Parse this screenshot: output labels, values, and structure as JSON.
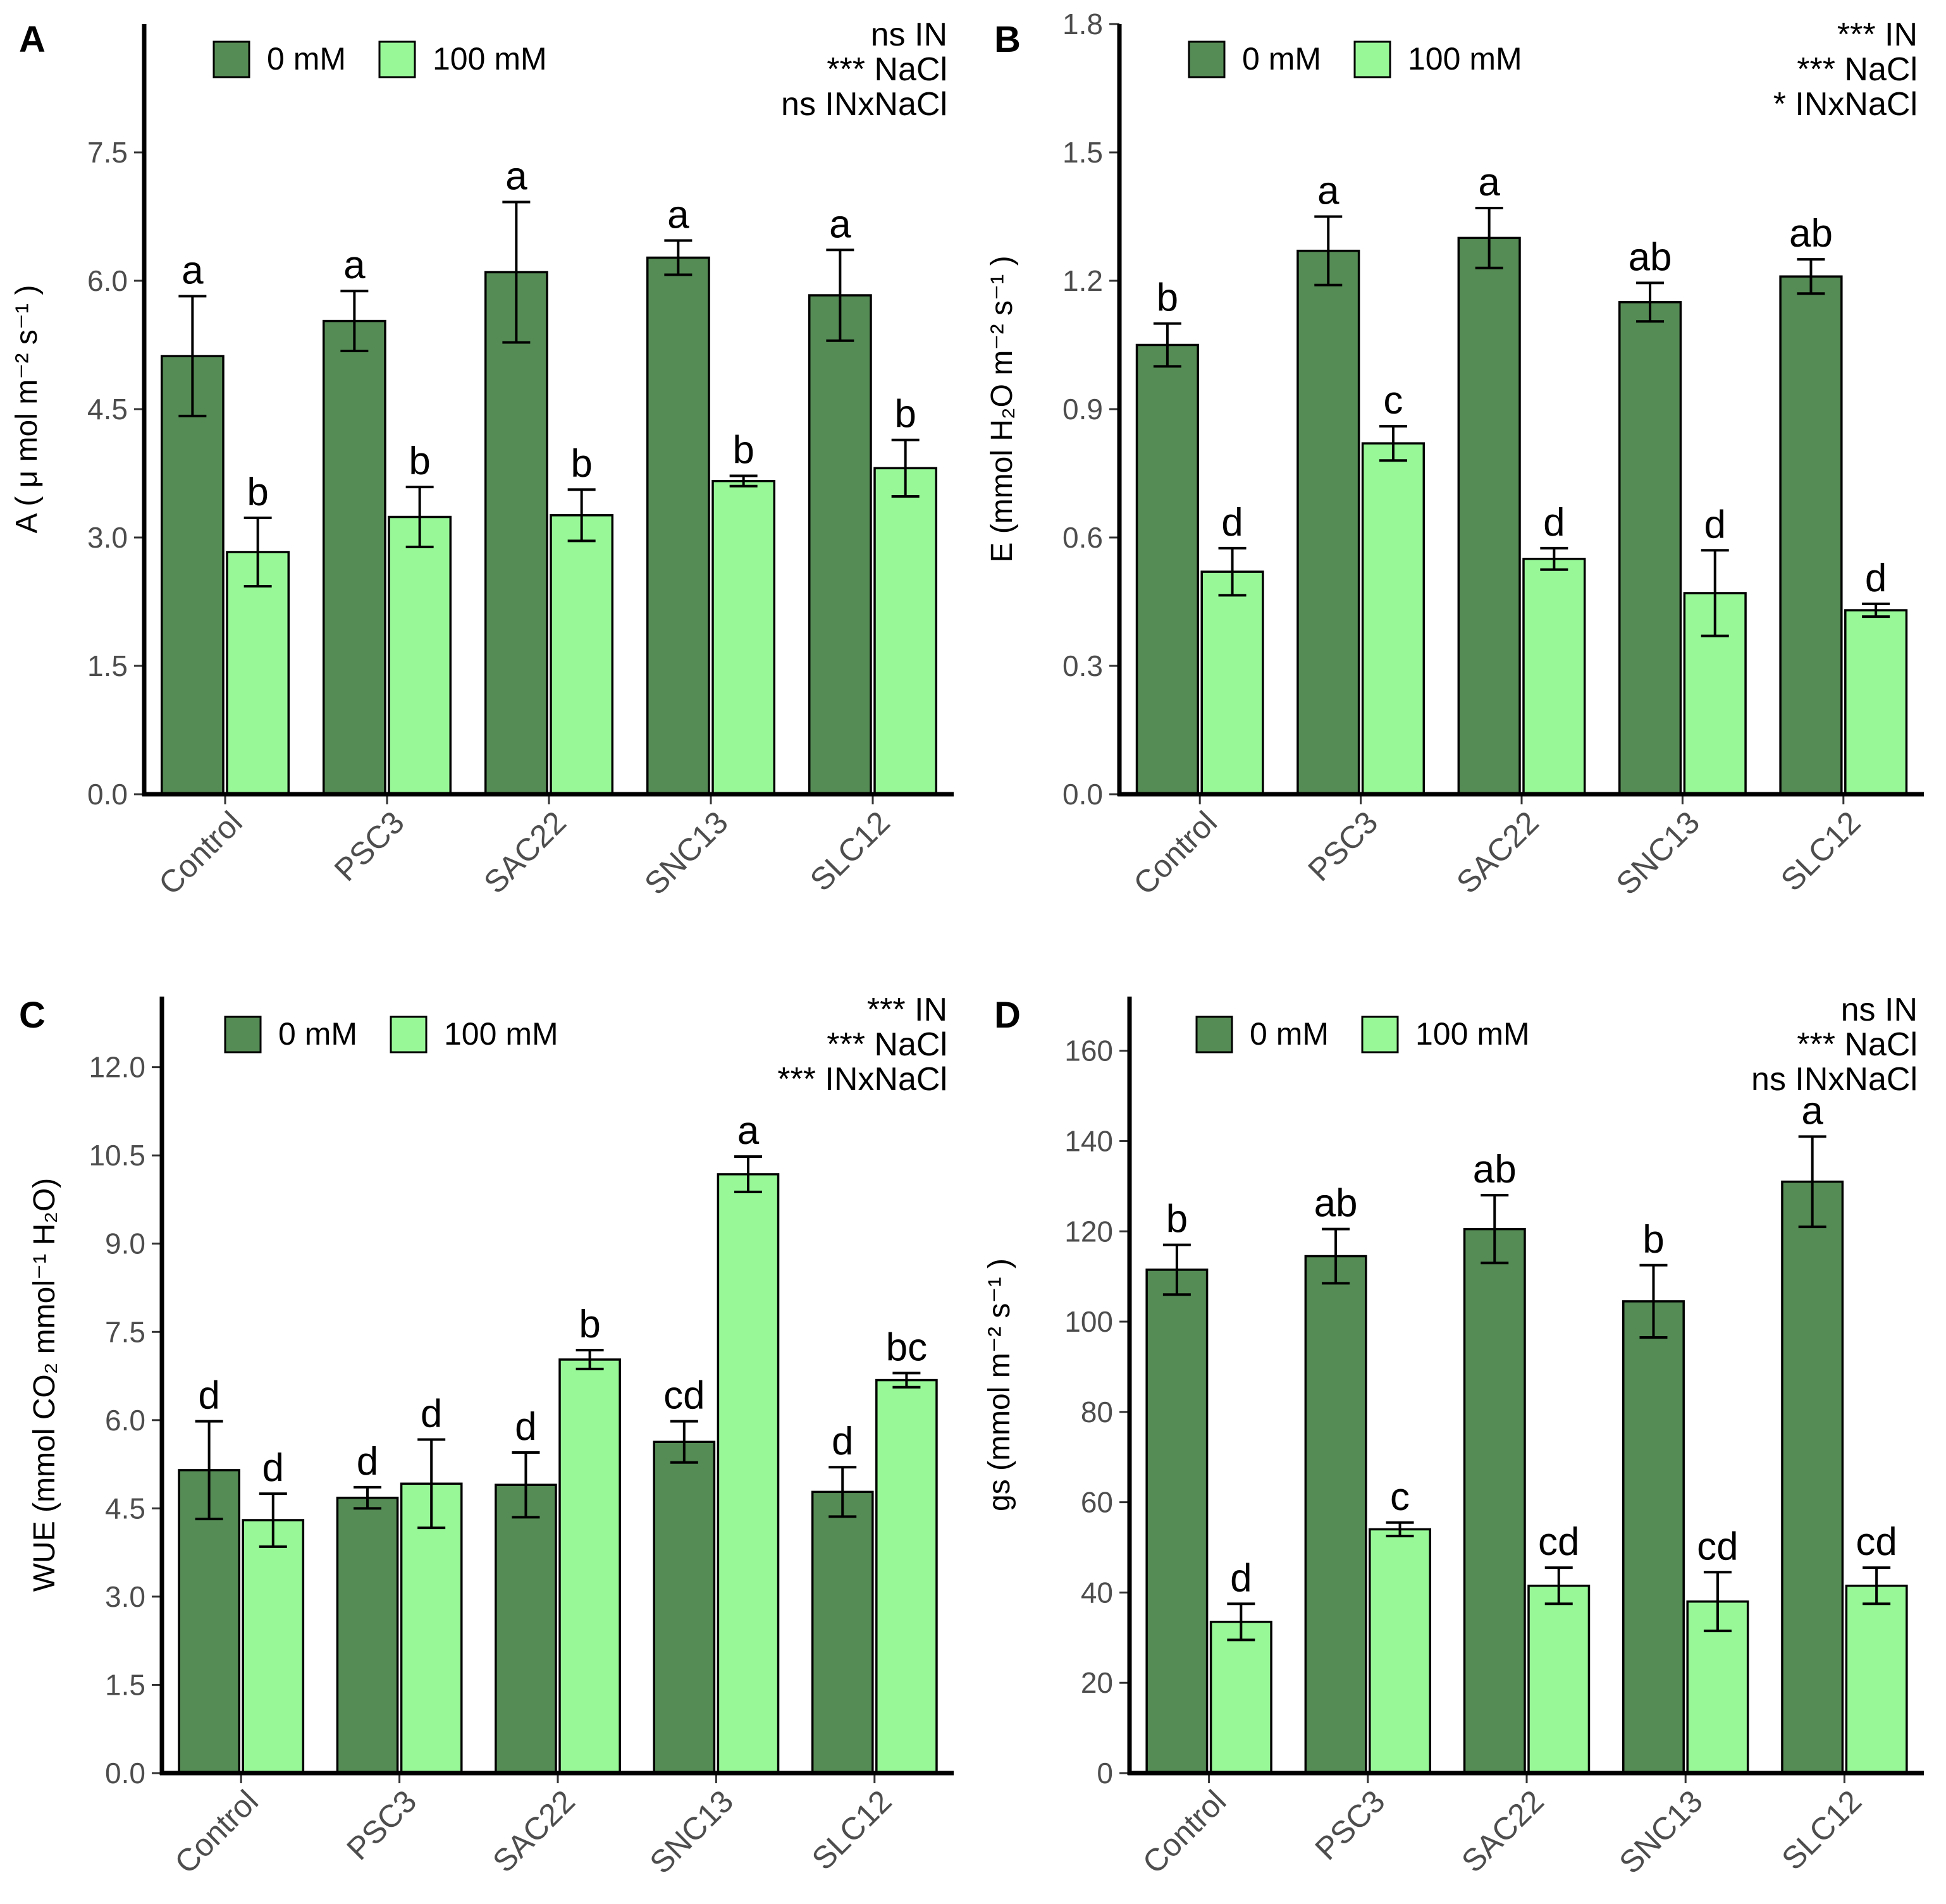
{
  "colors": {
    "dark": "#558b55",
    "light": "#98f898",
    "ink": "#000000",
    "tick": "#4d4d4d"
  },
  "legend": {
    "items": [
      "0 mM",
      "100 mM"
    ]
  },
  "chart_data": [
    {
      "panel_label": "A",
      "type": "bar",
      "ylabel": "A ( μ mol m⁻² s⁻¹ )",
      "ylim": [
        0,
        9
      ],
      "yticks": [
        "0.0",
        "1.5",
        "3.0",
        "4.5",
        "6.0",
        "7.5"
      ],
      "ytick_values": [
        0,
        1.5,
        3,
        4.5,
        6,
        7.5
      ],
      "categories": [
        "Control",
        "PSC3",
        "SAC22",
        "SNC13",
        "SLC12"
      ],
      "series": [
        {
          "name": "0 mM",
          "values": [
            5.12,
            5.53,
            6.1,
            6.27,
            5.83
          ],
          "errors": [
            0.7,
            0.35,
            0.82,
            0.2,
            0.53
          ],
          "letters": [
            "a",
            "a",
            "a",
            "a",
            "a"
          ]
        },
        {
          "name": "100 mM",
          "values": [
            2.83,
            3.24,
            3.26,
            3.66,
            3.81
          ],
          "errors": [
            0.4,
            0.35,
            0.3,
            0.06,
            0.33
          ],
          "letters": [
            "b",
            "b",
            "b",
            "b",
            "b"
          ]
        }
      ],
      "stats": [
        "ns IN",
        "*** NaCl",
        "ns INxNaCl"
      ]
    },
    {
      "panel_label": "B",
      "type": "bar",
      "ylabel": "E (mmol H₂O m⁻² s⁻¹ )",
      "ylim": [
        0,
        1.8
      ],
      "yticks": [
        "0.0",
        "0.3",
        "0.6",
        "0.9",
        "1.2",
        "1.5",
        "1.8"
      ],
      "ytick_values": [
        0,
        0.3,
        0.6,
        0.9,
        1.2,
        1.5,
        1.8
      ],
      "categories": [
        "Control",
        "PSC3",
        "SAC22",
        "SNC13",
        "SLC12"
      ],
      "series": [
        {
          "name": "0 mM",
          "values": [
            1.05,
            1.27,
            1.3,
            1.15,
            1.21
          ],
          "errors": [
            0.05,
            0.08,
            0.07,
            0.045,
            0.04
          ],
          "letters": [
            "b",
            "a",
            "a",
            "ab",
            "ab"
          ]
        },
        {
          "name": "100 mM",
          "values": [
            0.52,
            0.82,
            0.55,
            0.47,
            0.43
          ],
          "errors": [
            0.055,
            0.04,
            0.025,
            0.1,
            0.015
          ],
          "letters": [
            "d",
            "c",
            "d",
            "d",
            "d"
          ]
        }
      ],
      "stats": [
        "*** IN",
        "*** NaCl",
        "* INxNaCl"
      ]
    },
    {
      "panel_label": "C",
      "type": "bar",
      "ylabel": "WUE (mmol CO₂ mmol⁻¹ H₂O)",
      "ylim": [
        0,
        13.2
      ],
      "yticks": [
        "0.0",
        "1.5",
        "3.0",
        "4.5",
        "6.0",
        "7.5",
        "9.0",
        "10.5",
        "12.0"
      ],
      "ytick_values": [
        0,
        1.5,
        3,
        4.5,
        6,
        7.5,
        9,
        10.5,
        12
      ],
      "categories": [
        "Control",
        "PSC3",
        "SAC22",
        "SNC13",
        "SLC12"
      ],
      "series": [
        {
          "name": "0 mM",
          "values": [
            5.15,
            4.68,
            4.9,
            5.63,
            4.78
          ],
          "errors": [
            0.83,
            0.18,
            0.55,
            0.35,
            0.42
          ],
          "letters": [
            "d",
            "d",
            "d",
            "cd",
            "d"
          ]
        },
        {
          "name": "100 mM",
          "values": [
            4.3,
            4.92,
            7.03,
            10.18,
            6.68
          ],
          "errors": [
            0.45,
            0.75,
            0.16,
            0.3,
            0.12
          ],
          "letters": [
            "d",
            "d",
            "b",
            "a",
            "bc"
          ]
        }
      ],
      "stats": [
        "*** IN",
        "*** NaCl",
        "*** INxNaCl"
      ]
    },
    {
      "panel_label": "D",
      "type": "bar",
      "ylabel": "gs (mmol m⁻² s⁻¹ )",
      "ylim": [
        0,
        172
      ],
      "yticks": [
        "0",
        "20",
        "40",
        "60",
        "80",
        "100",
        "120",
        "140",
        "160"
      ],
      "ytick_values": [
        0,
        20,
        40,
        60,
        80,
        100,
        120,
        140,
        160
      ],
      "categories": [
        "Control",
        "PSC3",
        "SAC22",
        "SNC13",
        "SLC12"
      ],
      "series": [
        {
          "name": "0 mM",
          "values": [
            111.5,
            114.5,
            120.5,
            104.5,
            131
          ],
          "errors": [
            5.5,
            6,
            7.5,
            8,
            10
          ],
          "letters": [
            "b",
            "ab",
            "ab",
            "b",
            "a"
          ]
        },
        {
          "name": "100 mM",
          "values": [
            33.5,
            54,
            41.5,
            38,
            41.5
          ],
          "errors": [
            4,
            1.5,
            4,
            6.5,
            4
          ],
          "letters": [
            "d",
            "c",
            "cd",
            "cd",
            "cd"
          ]
        }
      ],
      "stats": [
        "ns IN",
        "*** NaCl",
        "ns INxNaCl"
      ]
    }
  ]
}
